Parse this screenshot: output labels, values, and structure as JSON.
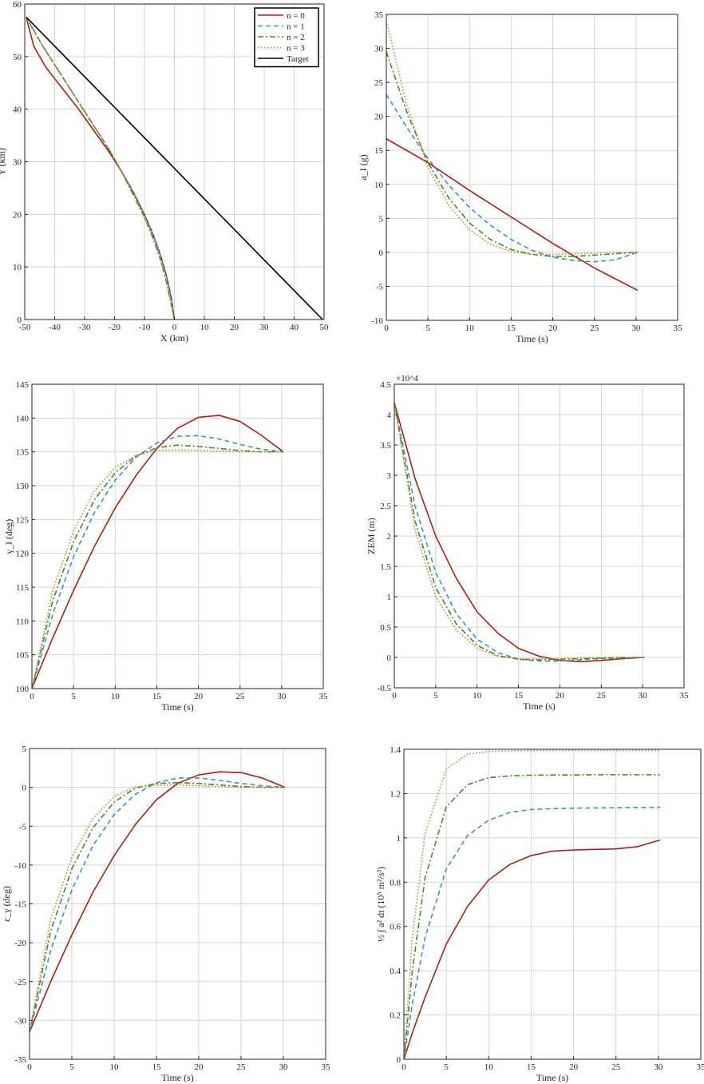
{
  "colors": {
    "n0": "#b01e0d",
    "n1": "#3396c6",
    "n2": "#4a8c17",
    "n3": "#d27f1d",
    "target": "#000000"
  },
  "legend": [
    "n = 0",
    "n = 1",
    "n = 2",
    "n = 3",
    "Target"
  ],
  "chart_data": [
    {
      "id": "trajectory",
      "type": "line",
      "xlabel": "X (km)",
      "ylabel": "Y (km)",
      "xlim": [
        -50,
        50
      ],
      "ylim": [
        0,
        60
      ],
      "xticks": [
        -50,
        -40,
        -30,
        -20,
        -10,
        0,
        10,
        20,
        30,
        40,
        50
      ],
      "yticks": [
        0,
        10,
        20,
        30,
        40,
        50,
        60
      ],
      "grid": true,
      "legend_position": "top-right",
      "series": [
        {
          "name": "n = 0",
          "x": [
            0,
            -1,
            -2.5,
            -4.5,
            -7,
            -10,
            -13.5,
            -17.5,
            -22,
            -27,
            -32,
            -37.5,
            -43,
            -47,
            -49.5
          ],
          "y": [
            0,
            4,
            8,
            12,
            16,
            20,
            24,
            28,
            32,
            36,
            40,
            44,
            48,
            52,
            57.5
          ]
        },
        {
          "name": "n = 1",
          "x": [
            0,
            -1,
            -2.5,
            -4.5,
            -7,
            -10,
            -13.5,
            -17.5,
            -21.5,
            -26,
            -30.5,
            -35,
            -39.5,
            -44,
            -49.5
          ],
          "y": [
            0,
            4,
            8,
            12,
            16,
            20,
            24,
            28,
            32,
            36,
            40,
            44,
            48,
            52,
            57.5
          ]
        },
        {
          "name": "n = 2",
          "x": [
            0,
            -1.5,
            -3,
            -5,
            -7.5,
            -10.5,
            -14,
            -17.5,
            -21.5,
            -26,
            -30.5,
            -35,
            -39.5,
            -44,
            -49.5
          ],
          "y": [
            0,
            4,
            8,
            12,
            16,
            20,
            24,
            28,
            32,
            36,
            40,
            44,
            48,
            52,
            57.5
          ]
        },
        {
          "name": "n = 3",
          "x": [
            0,
            -1.5,
            -3,
            -5,
            -7.5,
            -10.5,
            -14,
            -17.5,
            -21.5,
            -26,
            -30.5,
            -35,
            -39.5,
            -44,
            -49.5
          ],
          "y": [
            0,
            4,
            8,
            12,
            16,
            20,
            24,
            28,
            32,
            36,
            40,
            44,
            48,
            52,
            57.5
          ]
        },
        {
          "name": "Target",
          "x": [
            -49.5,
            49.5
          ],
          "y": [
            57.5,
            0
          ]
        }
      ]
    },
    {
      "id": "acceleration",
      "type": "line",
      "xlabel": "Time (s)",
      "ylabel": "a_I (g)",
      "xlim": [
        0,
        35
      ],
      "ylim": [
        -10,
        35
      ],
      "xticks": [
        0,
        5,
        10,
        15,
        20,
        25,
        30,
        35
      ],
      "yticks": [
        -10,
        -5,
        0,
        5,
        10,
        15,
        20,
        25,
        30,
        35
      ],
      "grid": true,
      "series": [
        {
          "name": "n = 0",
          "x": [
            0,
            5,
            10,
            15,
            20,
            25,
            30.2
          ],
          "y": [
            16.7,
            13.2,
            9.1,
            5.2,
            1.3,
            -2.3,
            -5.6
          ]
        },
        {
          "name": "n = 1",
          "x": [
            0,
            2.5,
            5,
            7.5,
            10,
            12.5,
            15,
            17.5,
            20,
            22.5,
            25,
            27.5,
            30.2
          ],
          "y": [
            23.2,
            18.3,
            13.8,
            9.9,
            6.6,
            4.0,
            1.9,
            0.3,
            -0.7,
            -1.2,
            -1.4,
            -1.1,
            0
          ]
        },
        {
          "name": "n = 2",
          "x": [
            0,
            2.5,
            5,
            7.5,
            10,
            12.5,
            15,
            17.5,
            20,
            22.5,
            25,
            27.5,
            30.2
          ],
          "y": [
            29.5,
            20.5,
            13.2,
            8.0,
            4.3,
            1.9,
            0.4,
            -0.3,
            -0.6,
            -0.6,
            -0.4,
            -0.2,
            0
          ]
        },
        {
          "name": "n = 3",
          "x": [
            0,
            2.5,
            5,
            7.5,
            10,
            12.5,
            15,
            17.5,
            20,
            22.5,
            25,
            27.5,
            30.2
          ],
          "y": [
            34.0,
            21.5,
            12.5,
            6.9,
            3.3,
            1.2,
            0.1,
            -0.3,
            -0.3,
            -0.2,
            -0.1,
            0,
            0
          ]
        }
      ]
    },
    {
      "id": "flight-path-angle",
      "type": "line",
      "xlabel": "Time (s)",
      "ylabel": "γ_I (deg)",
      "xlim": [
        0,
        35
      ],
      "ylim": [
        100,
        145
      ],
      "xticks": [
        0,
        5,
        10,
        15,
        20,
        25,
        30,
        35
      ],
      "yticks": [
        100,
        105,
        110,
        115,
        120,
        125,
        130,
        135,
        140,
        145
      ],
      "grid": true,
      "series": [
        {
          "name": "n = 0",
          "x": [
            0,
            2.5,
            5,
            7.5,
            10,
            12.5,
            15,
            17.5,
            20,
            22.5,
            25,
            27.5,
            30.2
          ],
          "y": [
            100,
            107.5,
            114.5,
            121,
            126.7,
            131.5,
            135.5,
            138.5,
            140.1,
            140.4,
            139.5,
            137.5,
            135
          ]
        },
        {
          "name": "n = 1",
          "x": [
            0,
            2.5,
            5,
            7.5,
            10,
            12.5,
            15,
            17.5,
            20,
            22.5,
            25,
            27.5,
            30.2
          ],
          "y": [
            100,
            111,
            119.5,
            126,
            130.8,
            134.2,
            136.3,
            137.3,
            137.4,
            136.9,
            136.1,
            135.4,
            135
          ]
        },
        {
          "name": "n = 2",
          "x": [
            0,
            2.5,
            5,
            7.5,
            10,
            12.5,
            15,
            17.5,
            20,
            22.5,
            25,
            27.5,
            30.2
          ],
          "y": [
            100,
            113,
            121.7,
            127.9,
            131.9,
            134.4,
            135.6,
            136.0,
            135.8,
            135.5,
            135.2,
            135.0,
            135
          ]
        },
        {
          "name": "n = 3",
          "x": [
            0,
            2.5,
            5,
            7.5,
            10,
            12.5,
            15,
            17.5,
            20,
            22.5,
            25,
            27.5,
            30.2
          ],
          "y": [
            100,
            114.5,
            123.3,
            129.2,
            132.7,
            134.5,
            135.2,
            135.3,
            135.2,
            135.1,
            135.0,
            135.0,
            135
          ]
        }
      ]
    },
    {
      "id": "zem",
      "type": "line",
      "xlabel": "Time (s)",
      "ylabel": "ZEM (m)",
      "exponent_label": "×10^4",
      "xlim": [
        0,
        35
      ],
      "ylim": [
        -0.5,
        4.5
      ],
      "xticks": [
        0,
        5,
        10,
        15,
        20,
        25,
        30,
        35
      ],
      "yticks": [
        -0.5,
        0,
        0.5,
        1,
        1.5,
        2,
        2.5,
        3,
        3.5,
        4,
        4.5
      ],
      "grid": true,
      "series": [
        {
          "name": "n = 0",
          "x": [
            0,
            2.5,
            5,
            7.5,
            10,
            12.5,
            15,
            17.5,
            20,
            22.5,
            25,
            27.5,
            30.2
          ],
          "y": [
            4.2,
            2.95,
            2.0,
            1.3,
            0.75,
            0.4,
            0.15,
            0.02,
            -0.05,
            -0.07,
            -0.05,
            -0.02,
            0
          ]
        },
        {
          "name": "n = 1",
          "x": [
            0,
            2.5,
            5,
            7.5,
            10,
            12.5,
            15,
            17.5,
            20,
            22.5,
            25,
            27.5,
            30.2
          ],
          "y": [
            4.2,
            2.5,
            1.4,
            0.72,
            0.3,
            0.08,
            -0.03,
            -0.06,
            -0.06,
            -0.04,
            -0.02,
            -0.01,
            0
          ]
        },
        {
          "name": "n = 2",
          "x": [
            0,
            2.5,
            5,
            7.5,
            10,
            12.5,
            15,
            17.5,
            20,
            22.5,
            25,
            27.5,
            30.2
          ],
          "y": [
            4.2,
            2.25,
            1.15,
            0.55,
            0.2,
            0.03,
            -0.03,
            -0.04,
            -0.03,
            -0.02,
            -0.01,
            0,
            0
          ]
        },
        {
          "name": "n = 3",
          "x": [
            0,
            2.5,
            5,
            7.5,
            10,
            12.5,
            15,
            17.5,
            20,
            22.5,
            25,
            27.5,
            30.2
          ],
          "y": [
            4.2,
            2.1,
            1.0,
            0.45,
            0.15,
            0.02,
            -0.02,
            -0.02,
            -0.02,
            -0.01,
            0,
            0,
            0
          ]
        }
      ]
    },
    {
      "id": "angle-error",
      "type": "line",
      "xlabel": "Time (s)",
      "ylabel": "ε_γ (deg)",
      "xlim": [
        0,
        35
      ],
      "ylim": [
        -35,
        5
      ],
      "xticks": [
        0,
        5,
        10,
        15,
        20,
        25,
        30,
        35
      ],
      "yticks": [
        -35,
        -30,
        -25,
        -20,
        -15,
        -10,
        -5,
        0,
        5
      ],
      "grid": true,
      "series": [
        {
          "name": "n = 0",
          "x": [
            0,
            2.5,
            5,
            7.5,
            10,
            12.5,
            15,
            17.5,
            20,
            22.5,
            25,
            27.5,
            30.2
          ],
          "y": [
            -31.5,
            -25,
            -19,
            -13.5,
            -8.8,
            -4.8,
            -1.6,
            0.5,
            1.6,
            2.0,
            1.9,
            1.2,
            0
          ]
        },
        {
          "name": "n = 1",
          "x": [
            0,
            2.5,
            5,
            7.5,
            10,
            12.5,
            15,
            17.5,
            20,
            22.5,
            25,
            27.5,
            30.2
          ],
          "y": [
            -31.5,
            -21,
            -13.2,
            -7.5,
            -3.5,
            -0.9,
            0.6,
            1.2,
            1.2,
            0.9,
            0.5,
            0.2,
            0
          ]
        },
        {
          "name": "n = 2",
          "x": [
            0,
            2.5,
            5,
            7.5,
            10,
            12.5,
            15,
            17.5,
            20,
            22.5,
            25,
            27.5,
            30.2
          ],
          "y": [
            -31.5,
            -18.5,
            -10.5,
            -5.2,
            -1.9,
            -0.1,
            0.5,
            0.6,
            0.5,
            0.3,
            0.1,
            0,
            0
          ]
        },
        {
          "name": "n = 3",
          "x": [
            0,
            2.5,
            5,
            7.5,
            10,
            12.5,
            15,
            17.5,
            20,
            22.5,
            25,
            27.5,
            30.2
          ],
          "y": [
            -31.5,
            -17,
            -9.0,
            -4.0,
            -1.2,
            0.1,
            0.3,
            0.3,
            0.2,
            0.1,
            0,
            0,
            0
          ]
        }
      ]
    },
    {
      "id": "control-effort",
      "type": "line",
      "xlabel": "Time (s)",
      "ylabel": "½ ∫ a² dt   (10⁵ m²/s³)",
      "xlim": [
        0,
        35
      ],
      "ylim": [
        0,
        1.4
      ],
      "xticks": [
        0,
        5,
        10,
        15,
        20,
        25,
        30,
        35
      ],
      "yticks": [
        0,
        0.2,
        0.4,
        0.6,
        0.8,
        1,
        1.2,
        1.4
      ],
      "grid": true,
      "series": [
        {
          "name": "n = 0",
          "x": [
            0,
            1,
            2.5,
            5,
            7.5,
            10,
            12.5,
            15,
            17.5,
            20,
            22.5,
            25,
            27.5,
            30.2
          ],
          "y": [
            0,
            0.12,
            0.28,
            0.52,
            0.69,
            0.81,
            0.88,
            0.92,
            0.94,
            0.945,
            0.948,
            0.95,
            0.96,
            0.99
          ]
        },
        {
          "name": "n = 1",
          "x": [
            0,
            1,
            2.5,
            5,
            7.5,
            10,
            12.5,
            15,
            17.5,
            20,
            22.5,
            25,
            27.5,
            30.2
          ],
          "y": [
            0,
            0.25,
            0.55,
            0.86,
            1.01,
            1.08,
            1.115,
            1.128,
            1.132,
            1.134,
            1.135,
            1.136,
            1.137,
            1.138
          ]
        },
        {
          "name": "n = 2",
          "x": [
            0,
            1,
            2.5,
            5,
            7.5,
            10,
            12.5,
            15,
            17.5,
            20,
            22.5,
            25,
            27.5,
            30.2
          ],
          "y": [
            0,
            0.4,
            0.82,
            1.14,
            1.24,
            1.272,
            1.28,
            1.283,
            1.284,
            1.284,
            1.285,
            1.285,
            1.285,
            1.285
          ]
        },
        {
          "name": "n = 3",
          "x": [
            0,
            1,
            2.5,
            5,
            7.5,
            10,
            12.5,
            15,
            17.5,
            20,
            22.5,
            25,
            27.5,
            30.2
          ],
          "y": [
            0,
            0.55,
            1.02,
            1.31,
            1.378,
            1.39,
            1.393,
            1.394,
            1.395,
            1.395,
            1.395,
            1.395,
            1.395,
            1.395
          ]
        }
      ]
    }
  ]
}
